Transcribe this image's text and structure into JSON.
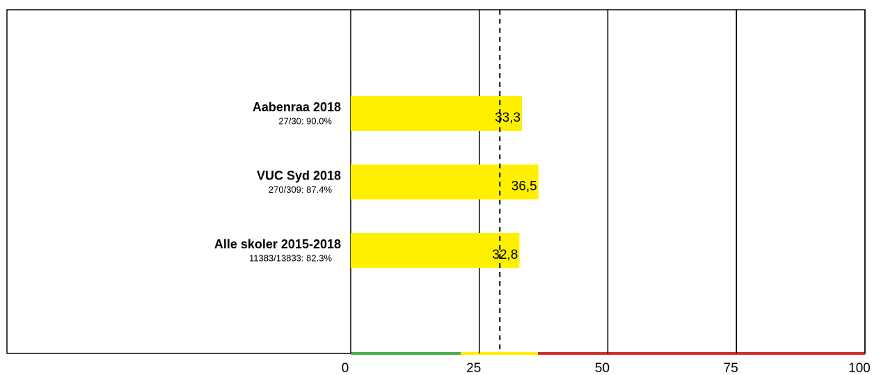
{
  "chart_data": {
    "type": "bar",
    "orientation": "horizontal",
    "categories": [
      "Aabenraa 2018",
      "VUC Syd 2018",
      "Alle skoler 2015-2018"
    ],
    "subtitles": [
      "27/30: 90.0%",
      "270/309: 87.4%",
      "11383/13833: 82.3%"
    ],
    "values": [
      33.3,
      36.5,
      32.8
    ],
    "value_labels": [
      "33,3",
      "36,5",
      "32,8"
    ],
    "color": "#fff000",
    "xlim": [
      0,
      100
    ],
    "xticks": [
      0,
      25,
      50,
      75,
      100
    ],
    "grid": true,
    "reference_line": 29,
    "bands": [
      {
        "from": 0,
        "to": 21.4,
        "color": "#4caf50"
      },
      {
        "from": 21.4,
        "to": 36.4,
        "color": "#fff000"
      },
      {
        "from": 36.4,
        "to": 100,
        "color": "#d32f2f"
      }
    ]
  }
}
